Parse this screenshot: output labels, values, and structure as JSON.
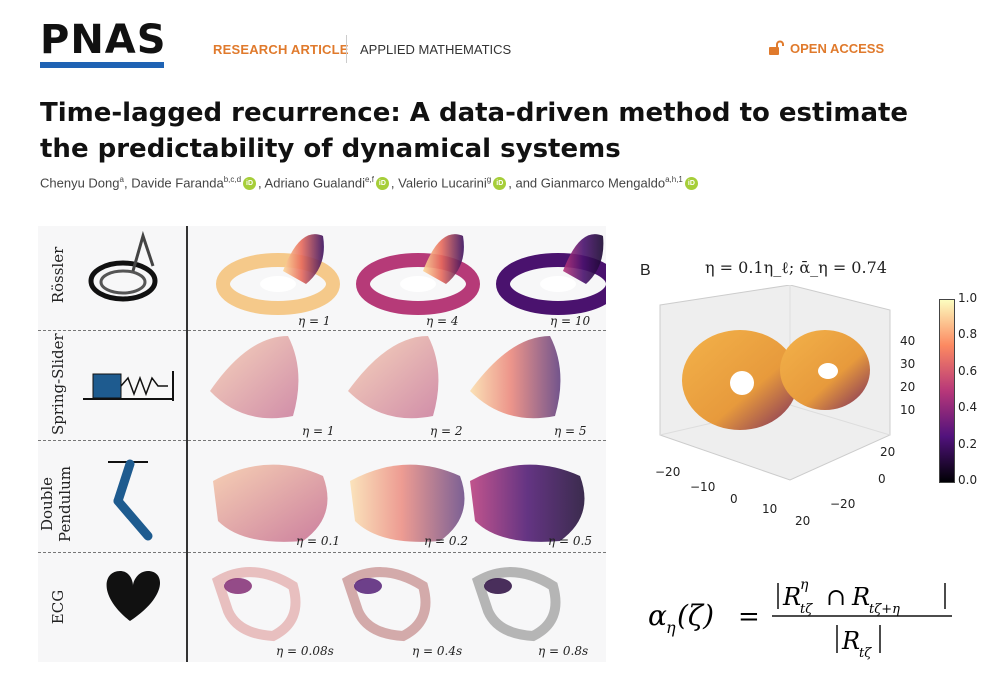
{
  "header": {
    "logo_text": "PNAS",
    "logo_bar_color": "#1f63b4",
    "category_primary": "RESEARCH ARTICLE",
    "category_primary_color": "#e07a2c",
    "category_secondary": "APPLIED MATHEMATICS",
    "open_access_label": "OPEN ACCESS",
    "open_access_color": "#e07a2c",
    "open_access_icon": "unlock-icon"
  },
  "article": {
    "title": "Time-lagged recurrence: A data-driven method to estimate the predictability of dynamical systems",
    "orcid_color": "#a6ce39",
    "orcid_text": "iD",
    "authors": [
      {
        "name": "Chenyu Dong",
        "sup": "a",
        "orcid": false,
        "sep": ", "
      },
      {
        "name": "Davide Faranda",
        "sup": "b,c,d",
        "orcid": true,
        "sep": ", "
      },
      {
        "name": "Adriano Gualandi",
        "sup": "e,f",
        "orcid": true,
        "sep": ", "
      },
      {
        "name": "Valerio Lucarini",
        "sup": "g",
        "orcid": true,
        "sep": ", and "
      },
      {
        "name": "Gianmarco Mengaldo",
        "sup": "a,h,1",
        "orcid": true,
        "sep": ""
      }
    ]
  },
  "figure": {
    "panel_a": {
      "rows": [
        {
          "label": "Rössler",
          "etas": [
            "η = 1",
            "η = 4",
            "η = 10"
          ]
        },
        {
          "label": "Spring-Slider",
          "etas": [
            "η = 1",
            "η = 2",
            "η = 5"
          ]
        },
        {
          "label_line1": "Double",
          "label_line2": "Pendulum",
          "etas": [
            "η = 0.1",
            "η = 0.2",
            "η = 0.5"
          ]
        },
        {
          "label": "ECG",
          "etas": [
            "η = 0.08s",
            "η = 0.4s",
            "η = 0.8s"
          ]
        }
      ]
    },
    "panel_b": {
      "label": "B",
      "title": "η = 0.1η_ℓ; ᾱ_η = 0.74",
      "colorbar_ticks": [
        "1.0",
        "0.8",
        "0.6",
        "0.4",
        "0.2",
        "0.0"
      ],
      "z_ticks": [
        "40",
        "30",
        "20",
        "10"
      ],
      "x_ticks": [
        "−20",
        "−10",
        "0",
        "10",
        "20"
      ],
      "y_ticks": [
        "20",
        "0",
        "−20"
      ]
    },
    "formula": {
      "lhs": "α",
      "lhs_sub": "η",
      "lhs_arg": "(ζ)",
      "equals": "=",
      "num_R1": "R",
      "num_R1_sup": "η",
      "num_R1_sub": "tζ",
      "num_cap": "∩",
      "num_R2": "R",
      "num_R2_sub": "tζ+η",
      "den_R": "R",
      "den_R_sub": "tζ"
    }
  }
}
